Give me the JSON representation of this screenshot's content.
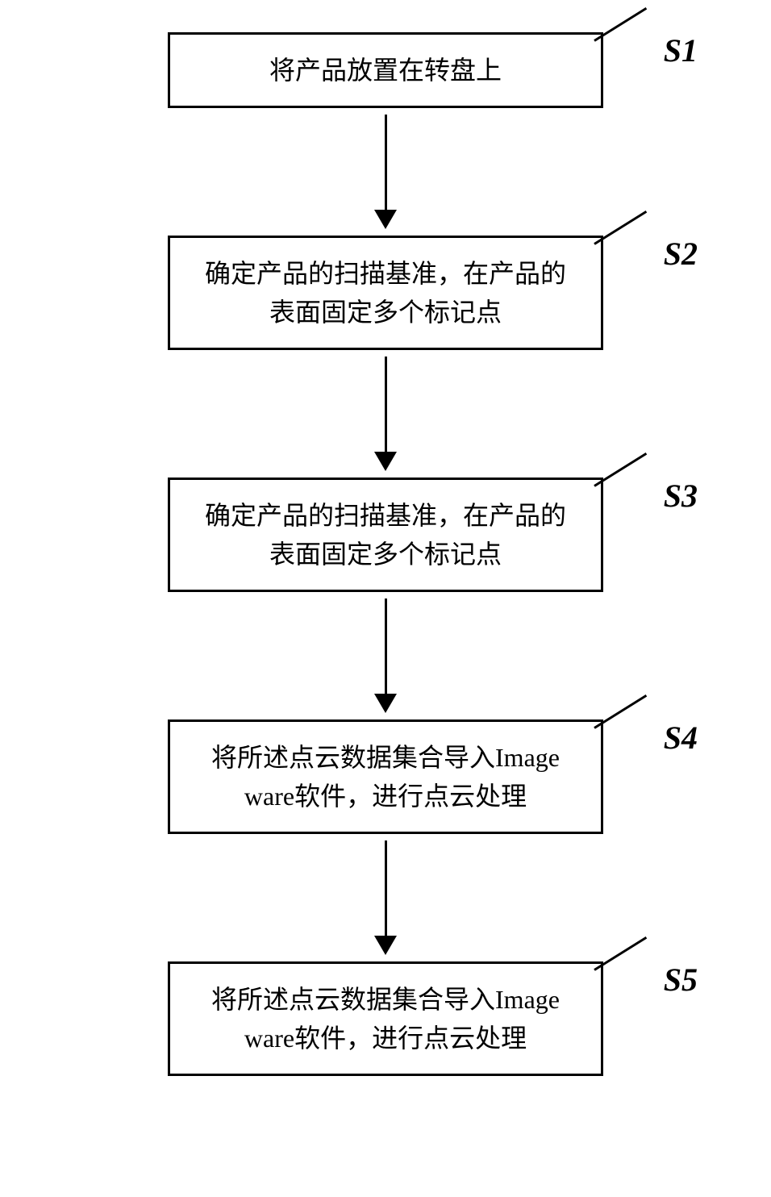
{
  "flowchart": {
    "type": "flowchart",
    "box_border_color": "#000000",
    "box_border_width": 3,
    "box_background": "#ffffff",
    "text_color": "#000000",
    "box_fontsize": 32,
    "label_fontsize": 40,
    "arrow_color": "#000000",
    "arrow_shaft_width": 3,
    "arrow_shaft_height": 120,
    "arrow_head_width": 28,
    "arrow_head_height": 24,
    "connector_angle_deg": -32,
    "steps": [
      {
        "label": "S1",
        "text": "将产品放置在转盘上"
      },
      {
        "label": "S2",
        "text": "确定产品的扫描基准，在产品的表面固定多个标记点"
      },
      {
        "label": "S3",
        "text": "确定产品的扫描基准，在产品的表面固定多个标记点"
      },
      {
        "label": "S4",
        "text": "将所述点云数据集合导入Image ware软件，进行点云处理"
      },
      {
        "label": "S5",
        "text": "将所述点云数据集合导入Image ware软件，进行点云处理"
      }
    ]
  }
}
